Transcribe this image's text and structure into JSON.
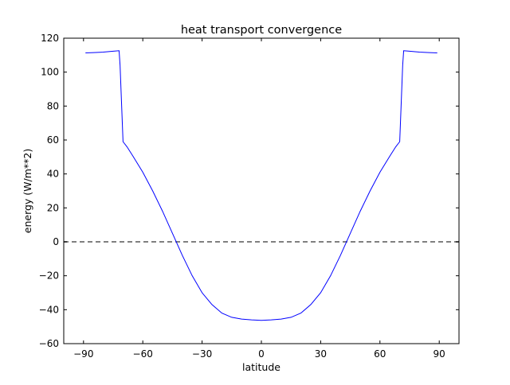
{
  "chart_data": {
    "type": "line",
    "title": "heat transport convergence",
    "xlabel": "latitude",
    "ylabel": "energy (W/m**2)",
    "xlim": [
      -100,
      100
    ],
    "ylim": [
      -60,
      120
    ],
    "xticks": [
      -90,
      -60,
      -30,
      0,
      30,
      60,
      90
    ],
    "xtick_labels": [
      "−90",
      "−60",
      "−30",
      "0",
      "30",
      "60",
      "90"
    ],
    "yticks": [
      -60,
      -40,
      -20,
      0,
      20,
      40,
      60,
      80,
      100,
      120
    ],
    "ytick_labels": [
      "−60",
      "−40",
      "−20",
      "0",
      "20",
      "40",
      "60",
      "80",
      "100",
      "120"
    ],
    "grid": false,
    "legend": false,
    "series": [
      {
        "color": "#0000ff",
        "x": [
          -89,
          -85,
          -80,
          -75,
          -72,
          -71.5,
          -70,
          -68,
          -65,
          -60,
          -55,
          -50,
          -45,
          -40,
          -35,
          -30,
          -25,
          -20,
          -15,
          -10,
          -5,
          0,
          5,
          10,
          15,
          20,
          25,
          30,
          35,
          40,
          45,
          50,
          55,
          60,
          65,
          68,
          70,
          71.5,
          72,
          75,
          80,
          85,
          89
        ],
        "y": [
          111.3,
          111.5,
          111.8,
          112.3,
          112.6,
          104,
          59,
          56,
          50.5,
          41,
          30,
          18,
          5,
          -8,
          -20,
          -30,
          -37,
          -42,
          -44.5,
          -45.5,
          -46,
          -46.3,
          -46,
          -45.5,
          -44.5,
          -42,
          -37,
          -30,
          -20,
          -8,
          5,
          18,
          30,
          41,
          50.5,
          56,
          59,
          104,
          112.6,
          112.3,
          111.8,
          111.5,
          111.3
        ]
      }
    ],
    "reference_line": {
      "y": 0,
      "style": "dashed",
      "color": "#808080"
    }
  }
}
